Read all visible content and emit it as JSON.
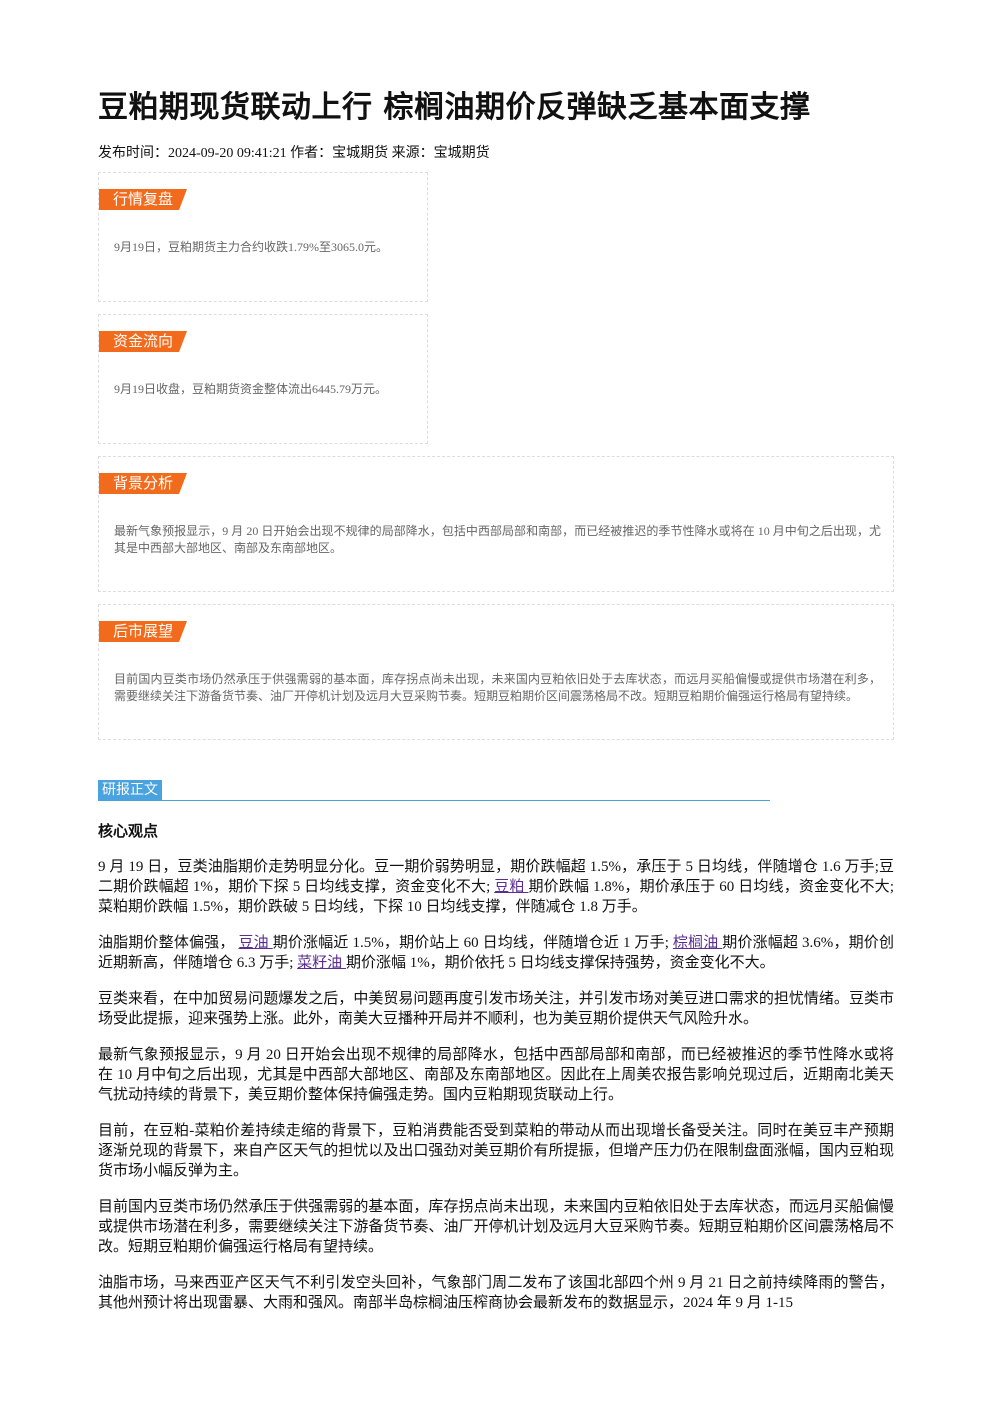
{
  "title": "豆粕期现货联动上行 棕榈油期价反弹缺乏基本面支撑",
  "meta": "发布时间：2024-09-20 09:41:21 作者：宝城期货 来源：宝城期货",
  "cards": [
    {
      "label": "行情复盘",
      "text": "9月19日，豆粕期货主力合约收跌1.79%至3065.0元。",
      "wide": false
    },
    {
      "label": "资金流向",
      "text": "9月19日收盘，豆粕期货资金整体流出6445.79万元。",
      "wide": false
    },
    {
      "label": "背景分析",
      "text": "最新气象预报显示，9 月 20 日开始会出现不规律的局部降水，包括中西部局部和南部，而已经被推迟的季节性降水或将在 10 月中旬之后出现，尤其是中西部大部地区、南部及东南部地区。",
      "wide": true
    },
    {
      "label": "后市展望",
      "text": "目前国内豆类市场仍然承压于供强需弱的基本面，库存拐点尚未出现，未来国内豆粕依旧处于去库状态，而远月买船偏慢或提供市场潜在利多，需要继续关注下游备货节奏、油厂开停机计划及远月大豆采购节奏。短期豆粕期价区间震荡格局不改。短期豆粕期价偏强运行格局有望持续。",
      "wide": true
    }
  ],
  "section_label": "研报正文",
  "core_heading": "核心观点",
  "paragraphs": [
    [
      {
        "text": "9 月 19 日，豆类油脂期价走势明显分化。豆一期价弱势明显，期价跌幅超 1.5%，承压于 5 日均线，伴随增仓 1.6 万手;豆二期价跌幅超 1%，期价下探 5 日均线支撑，资金变化不大; "
      },
      {
        "text": "豆粕 ",
        "link": true
      },
      {
        "text": "期价跌幅 1.8%，期价承压于 60 日均线，资金变化不大;菜粕期价跌幅 1.5%，期价跌破 5 日均线，下探 10 日均线支撑，伴随减仓 1.8 万手。"
      }
    ],
    [
      {
        "text": "油脂期价整体偏强， "
      },
      {
        "text": "豆油 ",
        "link": true
      },
      {
        "text": "期价涨幅近 1.5%，期价站上 60 日均线，伴随增仓近 1 万手; "
      },
      {
        "text": "棕榈油 ",
        "link": true
      },
      {
        "text": "期价涨幅超 3.6%，期价创近期新高，伴随增仓 6.3 万手; "
      },
      {
        "text": "菜籽油 ",
        "link": true
      },
      {
        "text": "期价涨幅 1%，期价依托 5 日均线支撑保持强势，资金变化不大。"
      }
    ],
    [
      {
        "text": "豆类来看，在中加贸易问题爆发之后，中美贸易问题再度引发市场关注，并引发市场对美豆进口需求的担忧情绪。豆类市场受此提振，迎来强势上涨。此外，南美大豆播种开局并不顺利，也为美豆期价提供天气风险升水。"
      }
    ],
    [
      {
        "text": "最新气象预报显示，9 月 20 日开始会出现不规律的局部降水，包括中西部局部和南部，而已经被推迟的季节性降水或将在 10 月中旬之后出现，尤其是中西部大部地区、南部及东南部地区。因此在上周美农报告影响兑现过后，近期南北美天气扰动持续的背景下，美豆期价整体保持偏强走势。国内豆粕期现货联动上行。"
      }
    ],
    [
      {
        "text": "目前，在豆粕-菜粕价差持续走缩的背景下，豆粕消费能否受到菜粕的带动从而出现增长备受关注。同时在美豆丰产预期逐渐兑现的背景下，来自产区天气的担忧以及出口强劲对美豆期价有所提振，但增产压力仍在限制盘面涨幅，国内豆粕现货市场小幅反弹为主。"
      }
    ],
    [
      {
        "text": "目前国内豆类市场仍然承压于供强需弱的基本面，库存拐点尚未出现，未来国内豆粕依旧处于去库状态，而远月买船偏慢或提供市场潜在利多，需要继续关注下游备货节奏、油厂开停机计划及远月大豆采购节奏。短期豆粕期价区间震荡格局不改。短期豆粕期价偏强运行格局有望持续。"
      }
    ],
    [
      {
        "text": "油脂市场，马来西亚产区天气不利引发空头回补，气象部门周二发布了该国北部四个州 9 月 21 日之前持续降雨的警告，其他州预计将出现雷暴、大雨和强风。南部半岛棕榈油压榨商协会最新发布的数据显示，2024 年 9 月 1-15"
      }
    ]
  ]
}
